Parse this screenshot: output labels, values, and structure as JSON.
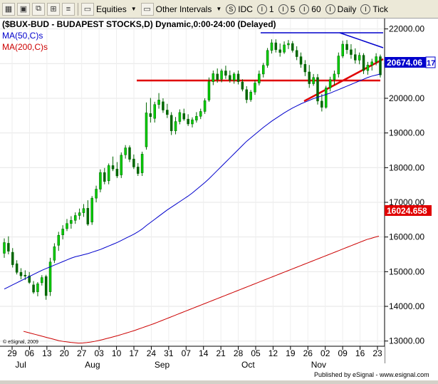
{
  "toolbar": {
    "equities_label": "Equities",
    "intervals_label": "Other Intervals",
    "idc_label": "IDC",
    "i1_label": "1",
    "i5_label": "5",
    "i60_label": "60",
    "daily_label": "Daily",
    "tick_label": "Tick"
  },
  "chart_data": {
    "type": "candlestick",
    "title": "($BUX-BUD - BUDAPEST STOCKS,D) Dynamic,0:00-24:00 (Delayed)",
    "legend": [
      {
        "name": "MA(50,C)s",
        "color": "#0000cc"
      },
      {
        "name": "MA(200,C)s",
        "color": "#cc0000"
      }
    ],
    "y_ticks": [
      "22000.00",
      "21000.00",
      "20000.00",
      "19000.00",
      "18000.00",
      "17000.00",
      "16000.00",
      "15000.00",
      "14000.00",
      "13000.00"
    ],
    "y_tick_values": [
      22000,
      21000,
      20000,
      19000,
      18000,
      17000,
      16000,
      15000,
      14000,
      13000
    ],
    "ylim": [
      12850,
      22300
    ],
    "x_days": [
      "29",
      "06",
      "13",
      "20",
      "27",
      "03",
      "10",
      "17",
      "24",
      "31",
      "07",
      "14",
      "21",
      "28",
      "05",
      "12",
      "19",
      "26",
      "02",
      "09",
      "16",
      "23"
    ],
    "x_months": [
      "Jul",
      "Aug",
      "Sep",
      "Oct",
      "Nov"
    ],
    "price_label": "20674.06",
    "price_label_suffix": "17",
    "ma200_label": "16024.658",
    "credit_left": "© eSignal, 2009",
    "credit_right": "Published by eSignal - www.esignal.com",
    "ohlc": [
      [
        15530,
        15960,
        15400,
        15840
      ],
      [
        15820,
        16020,
        15500,
        15590
      ],
      [
        15560,
        15680,
        15120,
        15200
      ],
      [
        15230,
        15330,
        14920,
        14980
      ],
      [
        14980,
        15100,
        14780,
        14880
      ],
      [
        14900,
        15040,
        14760,
        14870
      ],
      [
        14880,
        14990,
        14650,
        14690
      ],
      [
        14620,
        14730,
        14360,
        14410
      ],
      [
        14420,
        14700,
        14290,
        14650
      ],
      [
        14680,
        14900,
        14600,
        14830
      ],
      [
        14860,
        14910,
        14190,
        14310
      ],
      [
        14420,
        15400,
        14300,
        15280
      ],
      [
        15330,
        15820,
        15250,
        15720
      ],
      [
        15760,
        16150,
        15600,
        16050
      ],
      [
        16060,
        16340,
        15930,
        16230
      ],
      [
        16240,
        16520,
        16170,
        16390
      ],
      [
        16390,
        16600,
        16240,
        16480
      ],
      [
        16480,
        16710,
        16380,
        16620
      ],
      [
        16620,
        16820,
        16500,
        16700
      ],
      [
        16700,
        16950,
        16580,
        16820
      ],
      [
        16830,
        17060,
        16320,
        16370
      ],
      [
        16430,
        17180,
        16350,
        17120
      ],
      [
        17120,
        17480,
        17000,
        17380
      ],
      [
        17380,
        17950,
        17290,
        17860
      ],
      [
        17860,
        17990,
        17520,
        17600
      ],
      [
        17620,
        18120,
        17520,
        18060
      ],
      [
        18060,
        18320,
        17900,
        17960
      ],
      [
        17960,
        18160,
        17700,
        17760
      ],
      [
        17790,
        18440,
        17700,
        18360
      ],
      [
        18370,
        18650,
        18260,
        18570
      ],
      [
        18580,
        18640,
        18160,
        18240
      ],
      [
        18250,
        18380,
        17960,
        18020
      ],
      [
        18020,
        18130,
        17760,
        17830
      ],
      [
        17850,
        18460,
        17760,
        18390
      ],
      [
        18600,
        19880,
        18520,
        19580
      ],
      [
        19560,
        20010,
        19300,
        19470
      ],
      [
        19420,
        19900,
        19300,
        19820
      ],
      [
        19820,
        20150,
        19700,
        19950
      ],
      [
        19900,
        20000,
        19580,
        19660
      ],
      [
        19660,
        19840,
        19430,
        19530
      ],
      [
        19510,
        19600,
        18940,
        19060
      ],
      [
        19060,
        19460,
        18960,
        19330
      ],
      [
        19330,
        19680,
        19250,
        19590
      ],
      [
        19560,
        19700,
        19350,
        19400
      ],
      [
        19400,
        19540,
        19200,
        19260
      ],
      [
        19260,
        19450,
        19160,
        19380
      ],
      [
        19370,
        19600,
        19300,
        19480
      ],
      [
        19480,
        19700,
        19400,
        19620
      ],
      [
        19620,
        20000,
        19550,
        19930
      ],
      [
        19950,
        20600,
        19900,
        20480
      ],
      [
        20480,
        20800,
        20380,
        20710
      ],
      [
        20700,
        20860,
        20450,
        20540
      ],
      [
        20550,
        20850,
        20460,
        20790
      ],
      [
        20790,
        20940,
        20560,
        20660
      ],
      [
        20660,
        20800,
        20450,
        20520
      ],
      [
        20520,
        20750,
        20420,
        20700
      ],
      [
        20700,
        20800,
        20400,
        20480
      ],
      [
        20470,
        20550,
        20200,
        20260
      ],
      [
        20250,
        20350,
        19860,
        19960
      ],
      [
        19960,
        20240,
        19900,
        20180
      ],
      [
        20180,
        20520,
        20100,
        20440
      ],
      [
        20440,
        20800,
        20370,
        20700
      ],
      [
        20700,
        21020,
        20600,
        20950
      ],
      [
        20950,
        21450,
        20880,
        21380
      ],
      [
        21380,
        21700,
        21290,
        21600
      ],
      [
        21600,
        21700,
        21320,
        21400
      ],
      [
        21400,
        21580,
        21200,
        21320
      ],
      [
        21330,
        21640,
        21280,
        21540
      ],
      [
        21540,
        21680,
        21420,
        21580
      ],
      [
        21580,
        21650,
        21320,
        21380
      ],
      [
        21380,
        21500,
        21100,
        21200
      ],
      [
        21200,
        21320,
        20880,
        20980
      ],
      [
        20980,
        21100,
        20640,
        20760
      ],
      [
        20760,
        20960,
        20300,
        20420
      ],
      [
        20420,
        20700,
        20360,
        20600
      ],
      [
        20600,
        20700,
        19820,
        19920
      ],
      [
        19920,
        20120,
        19620,
        19740
      ],
      [
        19740,
        20360,
        19700,
        20300
      ],
      [
        20300,
        20620,
        20200,
        20540
      ],
      [
        20540,
        20800,
        20380,
        20700
      ],
      [
        20700,
        21320,
        20600,
        21220
      ],
      [
        21220,
        21660,
        21160,
        21560
      ],
      [
        21560,
        21680,
        21280,
        21400
      ],
      [
        21400,
        21560,
        21140,
        21260
      ],
      [
        21260,
        21440,
        21000,
        21100
      ],
      [
        21100,
        21320,
        20980,
        21240
      ],
      [
        21240,
        21300,
        20700,
        20800
      ],
      [
        20800,
        21050,
        20680,
        20960
      ],
      [
        20960,
        21140,
        20800,
        21050
      ],
      [
        21050,
        21300,
        20950,
        21200
      ],
      [
        21200,
        21260,
        20600,
        20674
      ]
    ],
    "ma50": [
      14500,
      14560,
      14620,
      14680,
      14740,
      14800,
      14860,
      14920,
      14980,
      15040,
      15090,
      15140,
      15190,
      15240,
      15290,
      15340,
      15390,
      15430,
      15460,
      15490,
      15520,
      15560,
      15600,
      15640,
      15690,
      15740,
      15790,
      15840,
      15900,
      15960,
      16020,
      16080,
      16150,
      16230,
      16330,
      16420,
      16510,
      16600,
      16690,
      16780,
      16860,
      16940,
      17020,
      17100,
      17180,
      17270,
      17370,
      17470,
      17570,
      17680,
      17800,
      17920,
      18040,
      18160,
      18280,
      18400,
      18520,
      18640,
      18760,
      18860,
      18960,
      19060,
      19160,
      19250,
      19340,
      19420,
      19500,
      19580,
      19650,
      19720,
      19780,
      19840,
      19890,
      19940,
      19990,
      20030,
      20070,
      20110,
      20150,
      20200,
      20250,
      20300,
      20350,
      20400,
      20450,
      20500,
      20550,
      20600,
      20640,
      20670,
      20700
    ],
    "ma200": [
      13280,
      13250,
      13220,
      13190,
      13160,
      13130,
      13100,
      13070,
      13040,
      13010,
      12990,
      12975,
      12960,
      12950,
      12940,
      12945,
      12955,
      12970,
      12990,
      13015,
      13040,
      13070,
      13100,
      13130,
      13160,
      13195,
      13230,
      13265,
      13300,
      13340,
      13380,
      13420,
      13460,
      13500,
      13545,
      13590,
      13635,
      13680,
      13725,
      13770,
      13815,
      13860,
      13905,
      13950,
      13995,
      14040,
      14085,
      14130,
      14175,
      14220,
      14265,
      14310,
      14355,
      14400,
      14445,
      14490,
      14535,
      14580,
      14625,
      14670,
      14715,
      14760,
      14805,
      14850,
      14895,
      14940,
      14985,
      15030,
      15075,
      15120,
      15165,
      15210,
      15255,
      15300,
      15345,
      15390,
      15435,
      15480,
      15525,
      15570,
      15615,
      15660,
      15705,
      15750,
      15795,
      15840,
      15885,
      15930,
      15960,
      15995,
      16024.658
    ]
  }
}
